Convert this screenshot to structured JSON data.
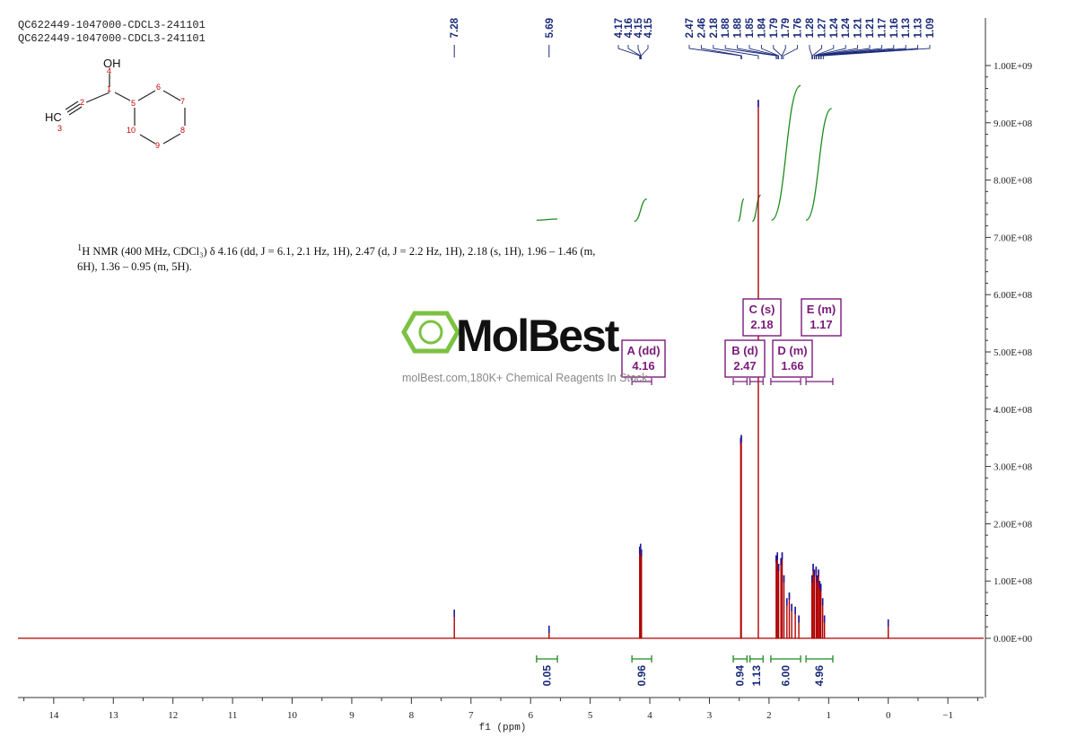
{
  "header": {
    "line1": "QC622449-1047000-CDCL3-241101",
    "line2": "QC622449-1047000-CDCL3-241101"
  },
  "description": {
    "sup": "1",
    "text": "H NMR (400 MHz, CDCl₃) δ 4.16 (dd, J = 6.1, 2.1 Hz, 1H), 2.47 (d, J = 2.2 Hz, 1H), 2.18 (s, 1H), 1.96 – 1.46 (m, 6H), 1.36 – 0.95 (m, 5H)."
  },
  "watermark": {
    "brand": "MolBest",
    "tagline": "molBest.com,180K+ Chemical Reagents In Stock."
  },
  "structure": {
    "atom_labels": [
      "OH",
      "HC",
      "1",
      "2",
      "3",
      "4",
      "5",
      "6",
      "7",
      "8",
      "9",
      "10"
    ]
  },
  "colors": {
    "spectrum": "#b00000",
    "peak_top": "#1a1a9e",
    "integral": "#1f8a1f",
    "label_blue": "#1a2a7a",
    "multiplet_box": "#7a1a7a",
    "brand_green": "#7cc242",
    "axis": "#333333"
  },
  "chart_data": {
    "type": "line",
    "xlabel": "f1 (ppm)",
    "xlim": [
      14.6,
      -1.6
    ],
    "x_ticks": [
      14,
      13,
      12,
      11,
      10,
      9,
      8,
      7,
      6,
      5,
      4,
      3,
      2,
      1,
      0,
      -1
    ],
    "right_axis": {
      "ylim": [
        0,
        1000000000
      ],
      "ticks": [
        "0.00E+00",
        "1.00E+08",
        "2.00E+08",
        "3.00E+08",
        "4.00E+08",
        "5.00E+08",
        "6.00E+08",
        "7.00E+08",
        "8.00E+08",
        "9.00E+08",
        "1.00E+09"
      ],
      "tick_values": [
        0,
        100000000,
        200000000,
        300000000,
        400000000,
        500000000,
        600000000,
        700000000,
        800000000,
        900000000,
        1000000000
      ]
    },
    "peak_labels": [
      {
        "text": "7.28",
        "ppm": 7.28,
        "group": "single"
      },
      {
        "text": "5.69",
        "ppm": 5.69,
        "group": "single"
      },
      {
        "text": "4.17",
        "ppm": 4.17,
        "group": "g4"
      },
      {
        "text": "4.16",
        "ppm": 4.16,
        "group": "g4"
      },
      {
        "text": "4.15",
        "ppm": 4.15,
        "group": "g4"
      },
      {
        "text": "4.15",
        "ppm": 4.145,
        "group": "g4"
      },
      {
        "text": "2.47",
        "ppm": 2.47,
        "group": "g2"
      },
      {
        "text": "2.46",
        "ppm": 2.46,
        "group": "g2"
      },
      {
        "text": "2.18",
        "ppm": 2.18,
        "group": "g2"
      },
      {
        "text": "1.88",
        "ppm": 1.88,
        "group": "g2"
      },
      {
        "text": "1.88",
        "ppm": 1.875,
        "group": "g2"
      },
      {
        "text": "1.85",
        "ppm": 1.85,
        "group": "g2"
      },
      {
        "text": "1.84",
        "ppm": 1.84,
        "group": "g2"
      },
      {
        "text": "1.79",
        "ppm": 1.79,
        "group": "g2"
      },
      {
        "text": "1.79",
        "ppm": 1.785,
        "group": "g2"
      },
      {
        "text": "1.76",
        "ppm": 1.76,
        "group": "g2"
      },
      {
        "text": "1.28",
        "ppm": 1.28,
        "group": "g2"
      },
      {
        "text": "1.27",
        "ppm": 1.27,
        "group": "g2"
      },
      {
        "text": "1.24",
        "ppm": 1.24,
        "group": "g2"
      },
      {
        "text": "1.24",
        "ppm": 1.235,
        "group": "g2"
      },
      {
        "text": "1.21",
        "ppm": 1.21,
        "group": "g2"
      },
      {
        "text": "1.21",
        "ppm": 1.205,
        "group": "g2"
      },
      {
        "text": "1.17",
        "ppm": 1.17,
        "group": "g2"
      },
      {
        "text": "1.16",
        "ppm": 1.16,
        "group": "g2"
      },
      {
        "text": "1.13",
        "ppm": 1.13,
        "group": "g2"
      },
      {
        "text": "1.13",
        "ppm": 1.125,
        "group": "g2"
      },
      {
        "text": "1.09",
        "ppm": 1.09,
        "group": "g2"
      }
    ],
    "peaks": [
      {
        "ppm": 7.28,
        "height": 50000000
      },
      {
        "ppm": 5.69,
        "height": 22000000
      },
      {
        "ppm": 4.17,
        "height": 160000000
      },
      {
        "ppm": 4.155,
        "height": 165000000
      },
      {
        "ppm": 4.14,
        "height": 155000000
      },
      {
        "ppm": 2.475,
        "height": 350000000
      },
      {
        "ppm": 2.465,
        "height": 355000000
      },
      {
        "ppm": 2.18,
        "height": 940000000
      },
      {
        "ppm": 1.88,
        "height": 145000000
      },
      {
        "ppm": 1.86,
        "height": 150000000
      },
      {
        "ppm": 1.84,
        "height": 130000000
      },
      {
        "ppm": 1.8,
        "height": 140000000
      },
      {
        "ppm": 1.78,
        "height": 150000000
      },
      {
        "ppm": 1.75,
        "height": 110000000
      },
      {
        "ppm": 1.7,
        "height": 70000000
      },
      {
        "ppm": 1.66,
        "height": 80000000
      },
      {
        "ppm": 1.62,
        "height": 60000000
      },
      {
        "ppm": 1.56,
        "height": 55000000
      },
      {
        "ppm": 1.5,
        "height": 40000000
      },
      {
        "ppm": 1.28,
        "height": 110000000
      },
      {
        "ppm": 1.26,
        "height": 130000000
      },
      {
        "ppm": 1.24,
        "height": 120000000
      },
      {
        "ppm": 1.21,
        "height": 125000000
      },
      {
        "ppm": 1.19,
        "height": 110000000
      },
      {
        "ppm": 1.17,
        "height": 120000000
      },
      {
        "ppm": 1.15,
        "height": 100000000
      },
      {
        "ppm": 1.13,
        "height": 95000000
      },
      {
        "ppm": 1.1,
        "height": 70000000
      },
      {
        "ppm": 1.07,
        "height": 40000000
      },
      {
        "ppm": 0.0,
        "height": 33000000
      }
    ],
    "integrals_bottom": [
      {
        "label": "0.05",
        "from": 5.9,
        "to": 5.55
      },
      {
        "label": "0.96",
        "from": 4.3,
        "to": 3.97
      },
      {
        "label": "0.94",
        "from": 2.6,
        "to": 2.37
      },
      {
        "label": "1.13",
        "from": 2.32,
        "to": 2.1
      },
      {
        "label": "6.00",
        "from": 1.97,
        "to": 1.47
      },
      {
        "label": "4.96",
        "from": 1.38,
        "to": 0.93
      }
    ],
    "integral_curves": [
      {
        "from": 5.9,
        "to": 5.55,
        "start": 730000000,
        "end": 732000000
      },
      {
        "from": 4.26,
        "to": 4.05,
        "start": 728000000,
        "end": 767000000
      },
      {
        "from": 2.52,
        "to": 2.42,
        "start": 728000000,
        "end": 767000000
      },
      {
        "from": 2.28,
        "to": 2.14,
        "start": 728000000,
        "end": 774000000
      },
      {
        "from": 1.96,
        "to": 1.47,
        "start": 730000000,
        "end": 965000000
      },
      {
        "from": 1.38,
        "to": 0.95,
        "start": 730000000,
        "end": 925000000
      }
    ],
    "multiplets": [
      {
        "letter": "A (dd)",
        "value": "4.16",
        "range": [
          4.3,
          3.97
        ]
      },
      {
        "letter": "B (d)",
        "value": "2.47",
        "range": [
          2.6,
          2.37
        ]
      },
      {
        "letter": "C (s)",
        "value": "2.18",
        "range": [
          2.32,
          2.1
        ]
      },
      {
        "letter": "D (m)",
        "value": "1.66",
        "range": [
          1.97,
          1.47
        ]
      },
      {
        "letter": "E (m)",
        "value": "1.17",
        "range": [
          1.38,
          0.93
        ]
      }
    ]
  }
}
